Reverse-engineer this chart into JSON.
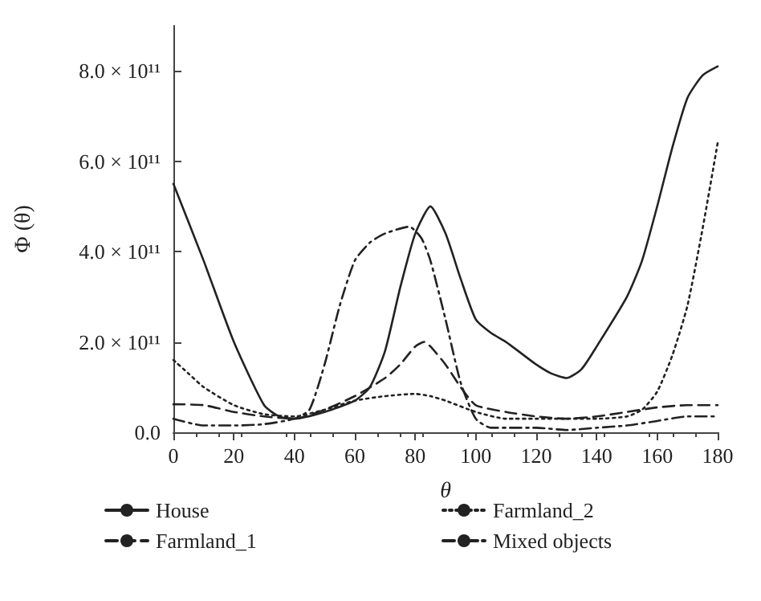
{
  "chart_data": {
    "type": "line",
    "xlabel": "θ",
    "ylabel": "Φ (θ)",
    "xlim": [
      0,
      180
    ],
    "xticks": [
      0,
      20,
      40,
      60,
      80,
      100,
      120,
      140,
      160,
      180
    ],
    "ylim": [
      0,
      900000000000.0
    ],
    "yticks": [
      {
        "value": 0,
        "label": "0.0"
      },
      {
        "value": 200000000000.0,
        "label": "2.0 × 10¹¹"
      },
      {
        "value": 400000000000.0,
        "label": "4.0 × 10¹¹"
      },
      {
        "value": 600000000000.0,
        "label": "6.0 × 10¹¹"
      },
      {
        "value": 800000000000.0,
        "label": "8.0 × 10¹¹"
      }
    ],
    "grid": false,
    "legend": "bottom",
    "marker": "none",
    "series": [
      {
        "name": "House",
        "color": "#222222",
        "line_style": "solid",
        "x": [
          0,
          10,
          20,
          30,
          35,
          40,
          50,
          60,
          65,
          70,
          75,
          80,
          85,
          90,
          95,
          100,
          105,
          110,
          115,
          120,
          125,
          130,
          135,
          140,
          150,
          155,
          160,
          165,
          170,
          175,
          180
        ],
        "values": [
          550000000000.0,
          380000000000.0,
          200000000000.0,
          60000000000.0,
          35000000000.0,
          30000000000.0,
          45000000000.0,
          70000000000.0,
          100000000000.0,
          180000000000.0,
          320000000000.0,
          440000000000.0,
          500000000000.0,
          440000000000.0,
          340000000000.0,
          250000000000.0,
          220000000000.0,
          200000000000.0,
          175000000000.0,
          150000000000.0,
          130000000000.0,
          120000000000.0,
          140000000000.0,
          190000000000.0,
          300000000000.0,
          380000000000.0,
          500000000000.0,
          630000000000.0,
          740000000000.0,
          790000000000.0,
          810000000000.0
        ]
      },
      {
        "name": "Farmland_1",
        "color": "#222222",
        "line_style": "dashed",
        "x": [
          0,
          10,
          20,
          30,
          40,
          50,
          60,
          70,
          75,
          80,
          83,
          85,
          90,
          95,
          100,
          110,
          120,
          130,
          140,
          150,
          160,
          170,
          180
        ],
        "values": [
          62000000000.0,
          60000000000.0,
          45000000000.0,
          35000000000.0,
          30000000000.0,
          50000000000.0,
          80000000000.0,
          120000000000.0,
          150000000000.0,
          190000000000.0,
          200000000000.0,
          190000000000.0,
          150000000000.0,
          100000000000.0,
          60000000000.0,
          45000000000.0,
          35000000000.0,
          30000000000.0,
          35000000000.0,
          45000000000.0,
          55000000000.0,
          60000000000.0,
          60000000000.0
        ]
      },
      {
        "name": "Farmland_2",
        "color": "#222222",
        "line_style": "dotted",
        "x": [
          0,
          5,
          10,
          20,
          30,
          40,
          50,
          60,
          70,
          80,
          85,
          90,
          100,
          110,
          120,
          130,
          140,
          150,
          155,
          160,
          165,
          170,
          175,
          180
        ],
        "values": [
          160000000000.0,
          130000000000.0,
          100000000000.0,
          60000000000.0,
          40000000000.0,
          35000000000.0,
          50000000000.0,
          70000000000.0,
          80000000000.0,
          85000000000.0,
          80000000000.0,
          70000000000.0,
          45000000000.0,
          30000000000.0,
          30000000000.0,
          30000000000.0,
          30000000000.0,
          35000000000.0,
          50000000000.0,
          90000000000.0,
          170000000000.0,
          280000000000.0,
          450000000000.0,
          640000000000.0
        ]
      },
      {
        "name": "Mixed objects",
        "color": "#222222",
        "line_style": "dashdot",
        "x": [
          0,
          10,
          20,
          30,
          40,
          45,
          50,
          55,
          60,
          65,
          70,
          78,
          82,
          85,
          90,
          95,
          100,
          105,
          110,
          120,
          130,
          140,
          150,
          160,
          170,
          180
        ],
        "values": [
          30000000000.0,
          15000000000.0,
          15000000000.0,
          18000000000.0,
          30000000000.0,
          50000000000.0,
          150000000000.0,
          280000000000.0,
          380000000000.0,
          420000000000.0,
          440000000000.0,
          455000000000.0,
          430000000000.0,
          380000000000.0,
          250000000000.0,
          110000000000.0,
          30000000000.0,
          10000000000.0,
          10000000000.0,
          10000000000.0,
          5000000000.0,
          10000000000.0,
          15000000000.0,
          25000000000.0,
          35000000000.0,
          35000000000.0
        ]
      }
    ]
  }
}
